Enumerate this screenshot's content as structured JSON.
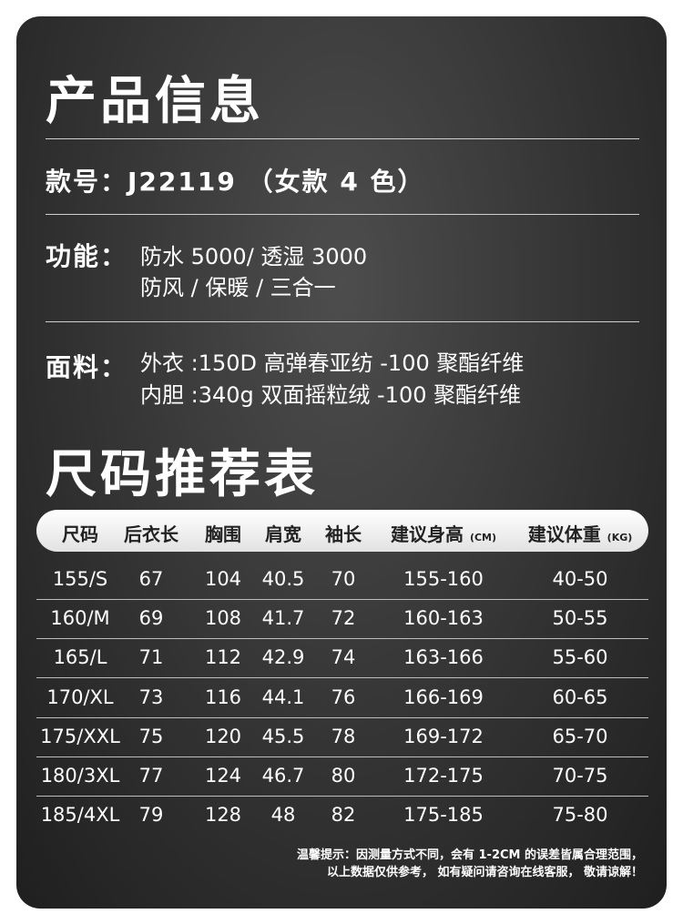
{
  "product_title": "产品信息",
  "model": "款号：J22119 （女款 4 色）",
  "function": {
    "label": "功能：",
    "lines": [
      "防水 5000/ 透湿 3000",
      "防风 / 保暖 / 三合一"
    ]
  },
  "fabric": {
    "label": "面料：",
    "lines": [
      "外衣 :150D 高弹春亚纺 -100 聚酯纤维",
      "内胆 :340g 双面摇粒绒 -100 聚酯纤维"
    ]
  },
  "size_title": "尺码推荐表",
  "table": {
    "headers": [
      {
        "t": "尺码"
      },
      {
        "t": "后衣长"
      },
      {
        "t": "胸围"
      },
      {
        "t": "肩宽"
      },
      {
        "t": "袖长"
      },
      {
        "t": "建议身高",
        "u": "(CM)"
      },
      {
        "t": "建议体重",
        "u": "(KG)"
      }
    ],
    "rows": [
      [
        "155/S",
        "67",
        "104",
        "40.5",
        "70",
        "155-160",
        "40-50"
      ],
      [
        "160/M",
        "69",
        "108",
        "41.7",
        "72",
        "160-163",
        "50-55"
      ],
      [
        "165/L",
        "71",
        "112",
        "42.9",
        "74",
        "163-166",
        "55-60"
      ],
      [
        "170/XL",
        "73",
        "116",
        "44.1",
        "76",
        "166-169",
        "60-65"
      ],
      [
        "175/XXL",
        "75",
        "120",
        "45.5",
        "78",
        "169-172",
        "65-70"
      ],
      [
        "180/3XL",
        "77",
        "124",
        "46.7",
        "80",
        "172-175",
        "70-75"
      ],
      [
        "185/4XL",
        "79",
        "128",
        "48",
        "82",
        "175-185",
        "75-80"
      ]
    ]
  },
  "note": [
    "温馨提示：因测量方式不同，会有 1-2CM 的误差皆属合理范围，",
    "以上数据仅供参考， 如有疑问请咨询在线客服， 敬请谅解！"
  ]
}
